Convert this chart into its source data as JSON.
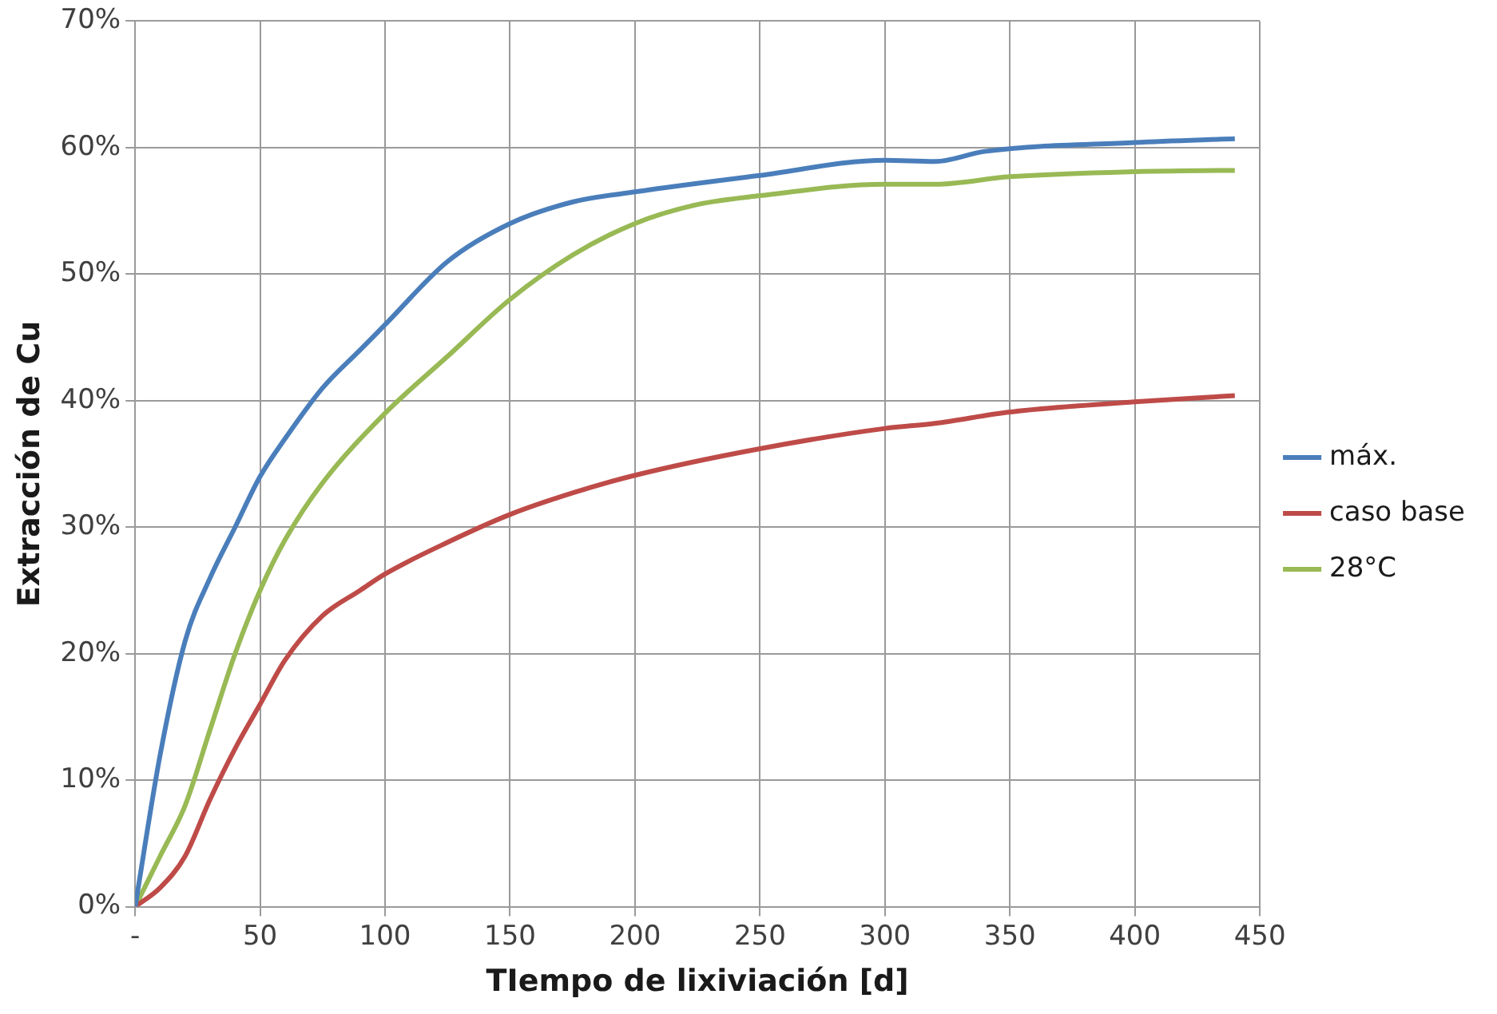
{
  "chart_data": {
    "type": "line",
    "xlabel": "TIempo de lixiviación [d]",
    "ylabel": "Extracción de Cu",
    "xlim": [
      0,
      450
    ],
    "xticks": [
      {
        "value": 0,
        "label": "-"
      },
      50,
      100,
      150,
      200,
      250,
      300,
      350,
      400,
      450
    ],
    "ylim": [
      0,
      70
    ],
    "yticks": [
      {
        "value": 0,
        "label": "0%"
      },
      {
        "value": 10,
        "label": "10%"
      },
      {
        "value": 20,
        "label": "20%"
      },
      {
        "value": 30,
        "label": "30%"
      },
      {
        "value": 40,
        "label": "40%"
      },
      {
        "value": 50,
        "label": "50%"
      },
      {
        "value": 60,
        "label": "60%"
      },
      {
        "value": 70,
        "label": "70%"
      }
    ],
    "grid": true,
    "legend": "right",
    "marker": "none",
    "line_style": "solid",
    "series": [
      {
        "name": "máx.",
        "color": "#4a7ebb",
        "x": [
          0,
          10,
          20,
          30,
          40,
          50,
          60,
          75,
          90,
          100,
          125,
          150,
          175,
          200,
          250,
          300,
          320,
          340,
          400,
          440
        ],
        "values": [
          0,
          12,
          21,
          26,
          30,
          34,
          37,
          41,
          44,
          46,
          51,
          54,
          55.7,
          56.5,
          57.8,
          59,
          58.9,
          59.7,
          60.4,
          60.7
        ]
      },
      {
        "name": "caso base",
        "color": "#be4b48",
        "x": [
          0,
          10,
          20,
          30,
          40,
          50,
          60,
          75,
          90,
          100,
          125,
          150,
          175,
          200,
          250,
          300,
          320,
          350,
          400,
          440
        ],
        "values": [
          0,
          1.5,
          4,
          8.5,
          12.5,
          16,
          19.5,
          23,
          25,
          26.3,
          28.8,
          31,
          32.7,
          34.1,
          36.2,
          37.8,
          38.2,
          39.1,
          39.9,
          40.4
        ]
      },
      {
        "name": "28°C",
        "color": "#98b954",
        "x": [
          0,
          10,
          20,
          30,
          40,
          50,
          60,
          75,
          100,
          125,
          150,
          175,
          200,
          225,
          250,
          300,
          320,
          350,
          400,
          440
        ],
        "values": [
          0,
          4,
          8,
          14,
          20,
          25,
          29,
          33.5,
          39,
          43.5,
          48,
          51.5,
          54,
          55.5,
          56.2,
          57.1,
          57.1,
          57.7,
          58.1,
          58.2
        ]
      }
    ]
  }
}
